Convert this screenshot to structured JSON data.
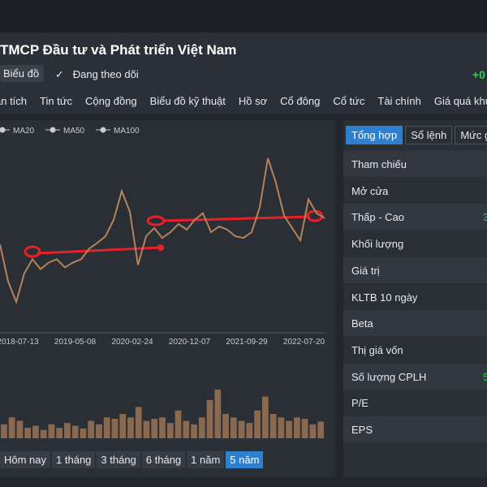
{
  "header": {
    "title": "TMCP Đầu tư và Phát triển Việt Nam",
    "chart_button": "Biểu đồ",
    "following": "Đang theo dõi",
    "change": "+0"
  },
  "nav_tabs": [
    "ân tích",
    "Tin tức",
    "Cộng đồng",
    "Biểu đồ kỹ thuật",
    "Hồ sơ",
    "Cổ đông",
    "Cổ tức",
    "Tài chính",
    "Giá quá khứ"
  ],
  "chart_data": {
    "type": "line",
    "color": "#b5835a",
    "legend": [
      "MA20",
      "MA50",
      "MA100"
    ],
    "xticks": [
      "2018-07-13",
      "2019-05-08",
      "2020-02-24",
      "2020-12-07",
      "2021-09-29",
      "2022-07-20"
    ],
    "values": [
      60,
      37.5,
      25,
      42.5,
      51,
      45,
      49,
      51,
      46,
      49,
      51,
      57.5,
      61,
      65,
      75,
      92.5,
      80,
      47.5,
      65,
      70,
      64,
      67.5,
      72.5,
      69,
      75,
      79,
      67.5,
      71,
      69,
      65,
      64,
      67.5,
      82.5,
      112.5,
      97.5,
      77.5,
      70,
      62.5,
      87.5,
      79,
      76
    ],
    "volume": [
      20,
      30,
      25,
      15,
      18,
      12,
      20,
      15,
      22,
      18,
      14,
      25,
      20,
      30,
      28,
      35,
      30,
      45,
      25,
      28,
      30,
      22,
      40,
      25,
      20,
      30,
      55,
      70,
      35,
      30,
      25,
      22,
      40,
      60,
      35,
      30,
      25,
      30,
      28,
      20,
      24
    ]
  },
  "range_buttons": [
    "Hôm nay",
    "1 tháng",
    "3 tháng",
    "6 tháng",
    "1 năm",
    "5 năm"
  ],
  "active_range": 5,
  "panel_tabs": [
    "Tổng hợp",
    "Sổ lệnh",
    "Mức gi"
  ],
  "active_panel_tab": 0,
  "stats": [
    {
      "label": "Tham chiếu"
    },
    {
      "label": "Mở cửa"
    },
    {
      "label": "Thấp - Cao",
      "value": "3"
    },
    {
      "label": "Khối lượng"
    },
    {
      "label": "Giá trị"
    },
    {
      "label": "KLTB 10 ngày"
    },
    {
      "label": "Beta"
    },
    {
      "label": "Thị giá vốn"
    },
    {
      "label": "Số lượng CPLH",
      "value": "5"
    },
    {
      "label": "P/E"
    },
    {
      "label": "EPS"
    }
  ]
}
